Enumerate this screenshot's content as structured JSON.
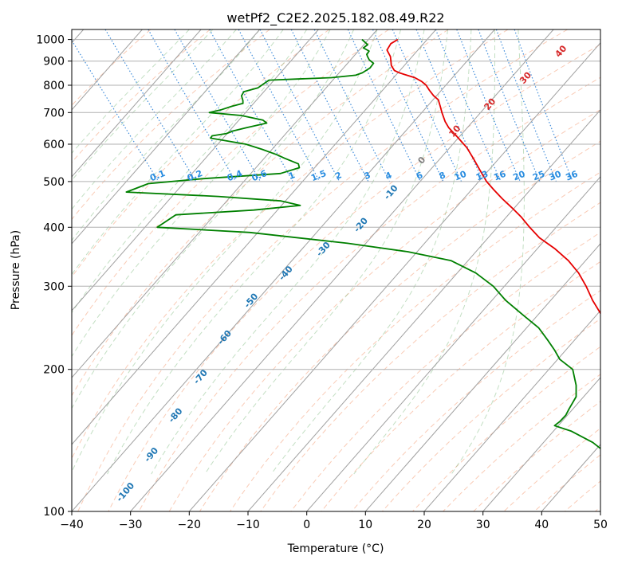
{
  "chart_data": {
    "type": "line",
    "title": "wetPf2_C2E2.2025.182.08.49.R22",
    "xlabel": "Temperature (°C)",
    "ylabel": "Pressure (hPa)",
    "xlim": [
      -40,
      50
    ],
    "ylim": [
      1050,
      100
    ],
    "y_scale": "log",
    "grid": true,
    "x_ticks": [
      "−40",
      "−30",
      "−20",
      "−10",
      "0",
      "10",
      "20",
      "30",
      "40",
      "50"
    ],
    "y_ticks": [
      "100",
      "200",
      "300",
      "400",
      "500",
      "600",
      "700",
      "800",
      "900",
      "1000"
    ],
    "isotherm_labels": [
      "-100",
      "-90",
      "-80",
      "-70",
      "-60",
      "-50",
      "-40",
      "-30",
      "-20",
      "-10",
      "0",
      "10",
      "20",
      "30",
      "40"
    ],
    "mixing_ratio_labels": [
      "0.1",
      "0.2",
      "0.4",
      "0.6",
      "1",
      "1.5",
      "2",
      "3",
      "4",
      "6",
      "8",
      "10",
      "13",
      "16",
      "20",
      "25",
      "30",
      "36"
    ],
    "series": [
      {
        "role": "temperature",
        "color": "#e60000",
        "points": [
          [
            1000,
            14.0
          ],
          [
            980,
            12.2
          ],
          [
            950,
            10.6
          ],
          [
            920,
            10.2
          ],
          [
            900,
            9.6
          ],
          [
            880,
            9.0
          ],
          [
            860,
            8.8
          ],
          [
            850,
            9.3
          ],
          [
            840,
            10.2
          ],
          [
            830,
            11.2
          ],
          [
            815,
            11.8
          ],
          [
            800,
            12.0
          ],
          [
            780,
            11.8
          ],
          [
            760,
            11.7
          ],
          [
            745,
            11.9
          ],
          [
            720,
            11.2
          ],
          [
            700,
            10.6
          ],
          [
            670,
            9.8
          ],
          [
            650,
            9.5
          ],
          [
            620,
            9.6
          ],
          [
            590,
            9.6
          ],
          [
            560,
            9.1
          ],
          [
            530,
            8.5
          ],
          [
            500,
            7.9
          ],
          [
            480,
            7.9
          ],
          [
            460,
            8.0
          ],
          [
            440,
            8.3
          ],
          [
            420,
            8.5
          ],
          [
            400,
            8.4
          ],
          [
            380,
            8.5
          ],
          [
            360,
            9.5
          ],
          [
            340,
            10.0
          ],
          [
            320,
            9.9
          ],
          [
            300,
            9.2
          ],
          [
            280,
            8.2
          ],
          [
            260,
            7.5
          ],
          [
            250,
            7.3
          ],
          [
            240,
            7.5
          ],
          [
            230,
            7.9
          ],
          [
            215,
            7.3
          ],
          [
            205,
            6.8
          ],
          [
            200,
            7.2
          ],
          [
            195,
            8.3
          ],
          [
            185,
            11.2
          ],
          [
            175,
            13.8
          ],
          [
            160,
            16.0
          ],
          [
            150,
            16.9
          ],
          [
            140,
            17.0
          ],
          [
            130,
            17.5
          ],
          [
            120,
            18.9
          ],
          [
            112,
            22.8
          ],
          [
            105,
            24.7
          ],
          [
            100,
            25.1
          ]
        ]
      },
      {
        "role": "dewpoint",
        "color": "#008000",
        "points": [
          [
            1000,
            7.9
          ],
          [
            975,
            8.1
          ],
          [
            960,
            6.9
          ],
          [
            945,
            7.4
          ],
          [
            930,
            6.5
          ],
          [
            920,
            6.3
          ],
          [
            905,
            6.1
          ],
          [
            890,
            6.3
          ],
          [
            870,
            5.0
          ],
          [
            860,
            4.0
          ],
          [
            850,
            3.0
          ],
          [
            840,
            1.5
          ],
          [
            830,
            -3.0
          ],
          [
            820,
            -14.0
          ],
          [
            800,
            -16.0
          ],
          [
            790,
            -17.0
          ],
          [
            775,
            -20.0
          ],
          [
            760,
            -21.0
          ],
          [
            742,
            -21.5
          ],
          [
            732,
            -21.9
          ],
          [
            722,
            -24.2
          ],
          [
            710,
            -26.5
          ],
          [
            700,
            -29.0
          ],
          [
            690,
            -24.0
          ],
          [
            675,
            -21.0
          ],
          [
            665,
            -20.8
          ],
          [
            650,
            -25.0
          ],
          [
            640,
            -27.7
          ],
          [
            632,
            -29.2
          ],
          [
            625,
            -32.0
          ],
          [
            618,
            -32.6
          ],
          [
            600,
            -27.5
          ],
          [
            585,
            -25.5
          ],
          [
            570,
            -23.8
          ],
          [
            560,
            -23.0
          ],
          [
            545,
            -21.5
          ],
          [
            535,
            -21.9
          ],
          [
            520,
            -26.0
          ],
          [
            507,
            -40.0
          ],
          [
            495,
            -50.0
          ],
          [
            475,
            -55.0
          ],
          [
            465,
            -40.0
          ],
          [
            455,
            -30.0
          ],
          [
            445,
            -27.4
          ],
          [
            435,
            -36.0
          ],
          [
            425,
            -50.0
          ],
          [
            400,
            -55.0
          ],
          [
            390,
            -40.0
          ],
          [
            370,
            -25.0
          ],
          [
            355,
            -16.0
          ],
          [
            340,
            -10.0
          ],
          [
            320,
            -7.6
          ],
          [
            300,
            -6.6
          ],
          [
            280,
            -6.6
          ],
          [
            260,
            -5.8
          ],
          [
            245,
            -5.1
          ],
          [
            230,
            -5.4
          ],
          [
            220,
            -5.7
          ],
          [
            210,
            -6.2
          ],
          [
            200,
            -5.5
          ],
          [
            185,
            -7.3
          ],
          [
            175,
            -9.0
          ],
          [
            165,
            -12.0
          ],
          [
            160,
            -13.5
          ],
          [
            155,
            -15.5
          ],
          [
            152,
            -17.0
          ],
          [
            148,
            -15.0
          ],
          [
            140,
            -13.0
          ],
          [
            130,
            -12.0
          ],
          [
            120,
            -10.5
          ],
          [
            115,
            -8.5
          ],
          [
            110,
            -5.5
          ],
          [
            105,
            -3.5
          ],
          [
            100,
            -3.0
          ]
        ]
      }
    ]
  }
}
